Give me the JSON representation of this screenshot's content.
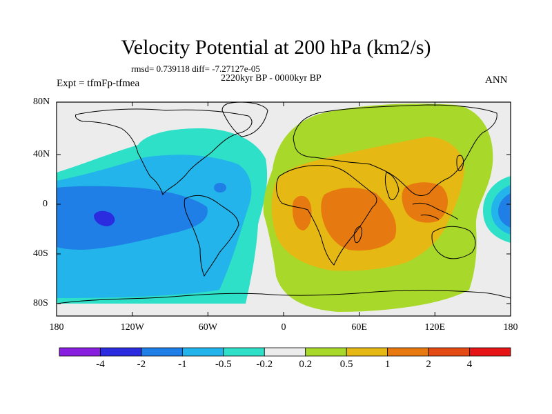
{
  "title": "Velocity Potential at 200 hPa (km2/s)",
  "stats": "rmsd= 0.739118 diff= -7.27127e-05",
  "period": "2220kyr BP - 0000kyr BP",
  "experiment": "Expt = tfmFp-tfmea",
  "season": "ANN",
  "lat_ticks": [
    "80N",
    "40N",
    "0",
    "40S",
    "80S"
  ],
  "lon_ticks": [
    "180",
    "120W",
    "60W",
    "0",
    "60E",
    "120E",
    "180"
  ],
  "colorbar": {
    "labels": [
      "-4",
      "-2",
      "-1",
      "-0.5",
      "-0.2",
      "0.2",
      "0.5",
      "1",
      "2",
      "4"
    ],
    "colors": [
      "#8a1ee0",
      "#2b2be0",
      "#1f7fe6",
      "#22b4ea",
      "#2ee0c8",
      "#ececec",
      "#a8d82a",
      "#e6b814",
      "#e67a10",
      "#e64a14",
      "#e61414"
    ]
  }
}
